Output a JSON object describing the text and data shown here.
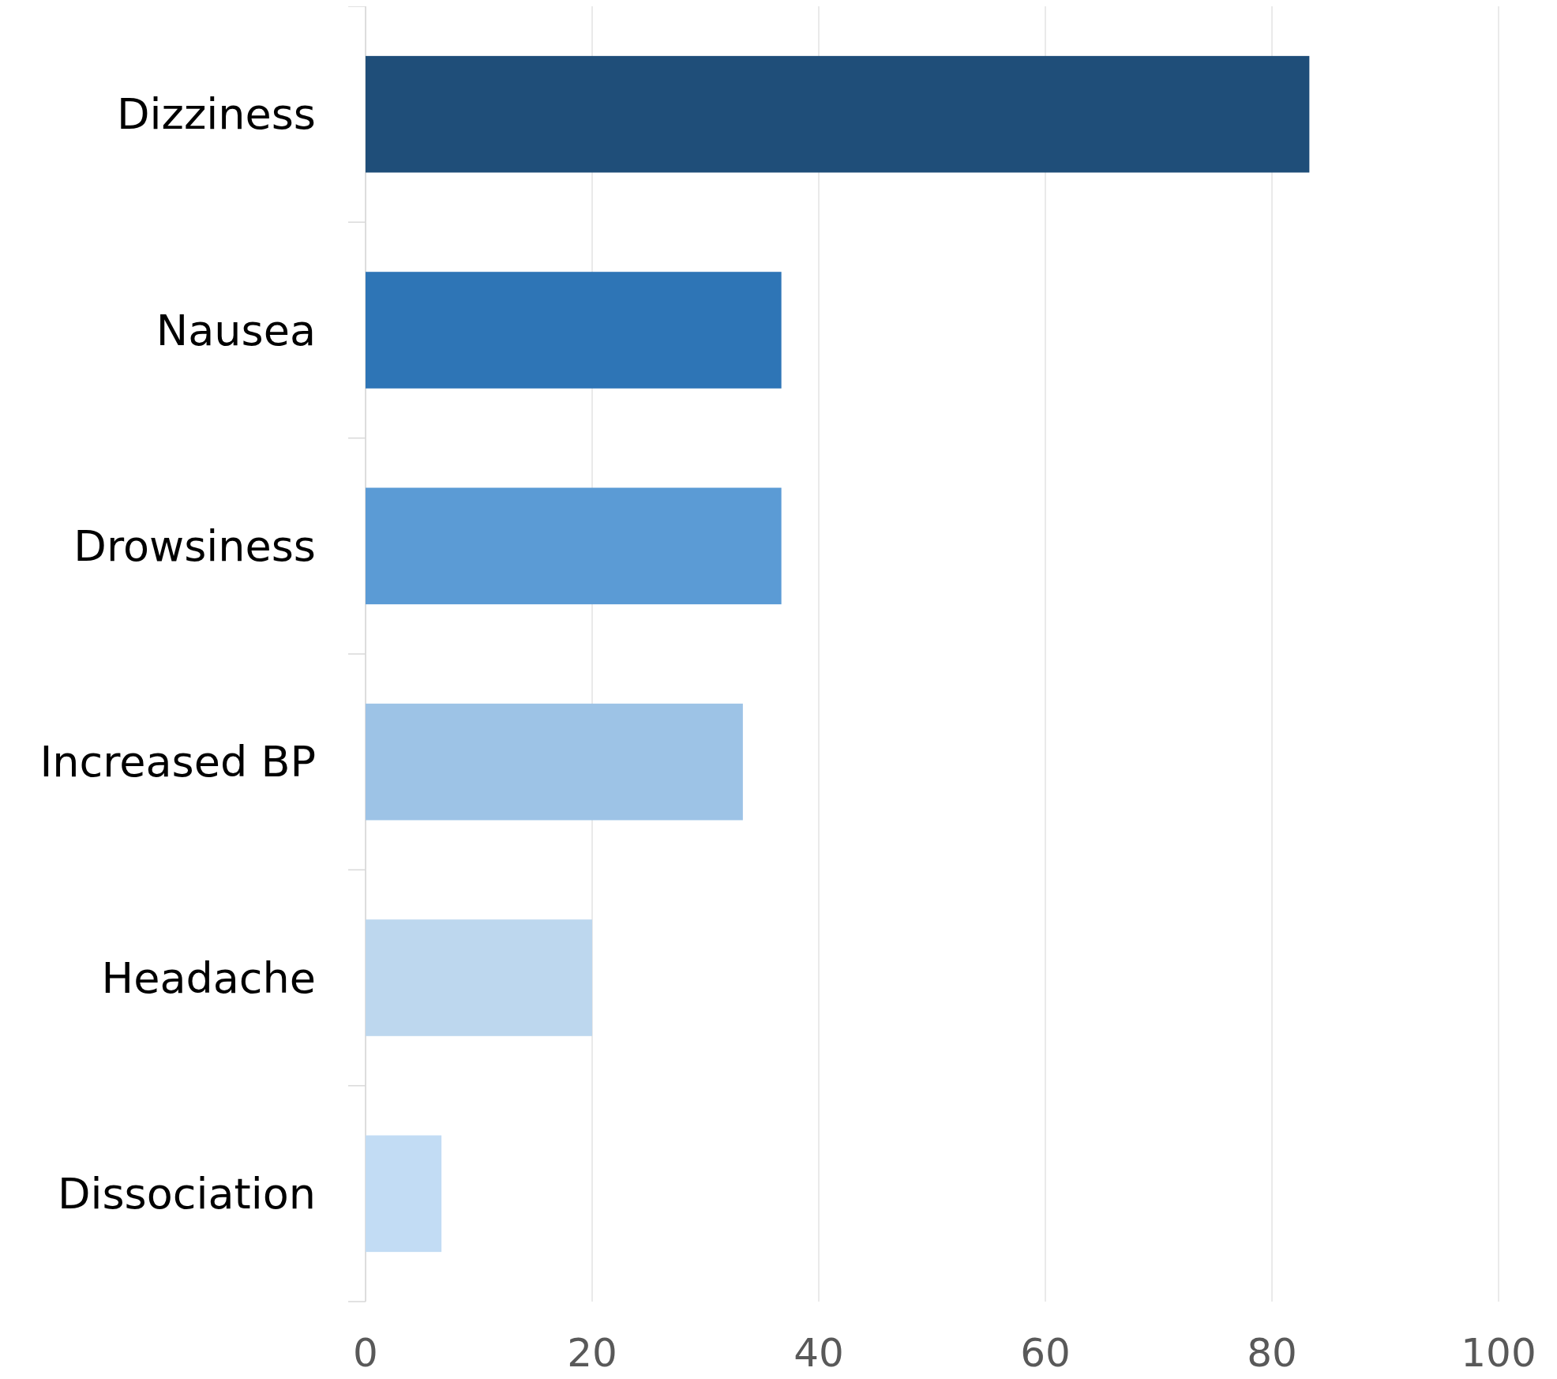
{
  "chart_data": {
    "type": "bar",
    "orientation": "horizontal",
    "categories": [
      "Dizziness",
      "Nausea",
      "Drowsiness",
      "Increased BP",
      "Headache",
      "Dissociation"
    ],
    "values": [
      83.3,
      36.7,
      36.7,
      33.3,
      20,
      6.7
    ],
    "colors": [
      "#1f4e79",
      "#2e75b6",
      "#5b9bd5",
      "#9dc3e6",
      "#bdd7ee",
      "#c2dcf4"
    ],
    "xlim": [
      0,
      100
    ],
    "xticks": [
      0,
      20,
      40,
      60,
      80,
      100
    ],
    "grid": "x"
  }
}
